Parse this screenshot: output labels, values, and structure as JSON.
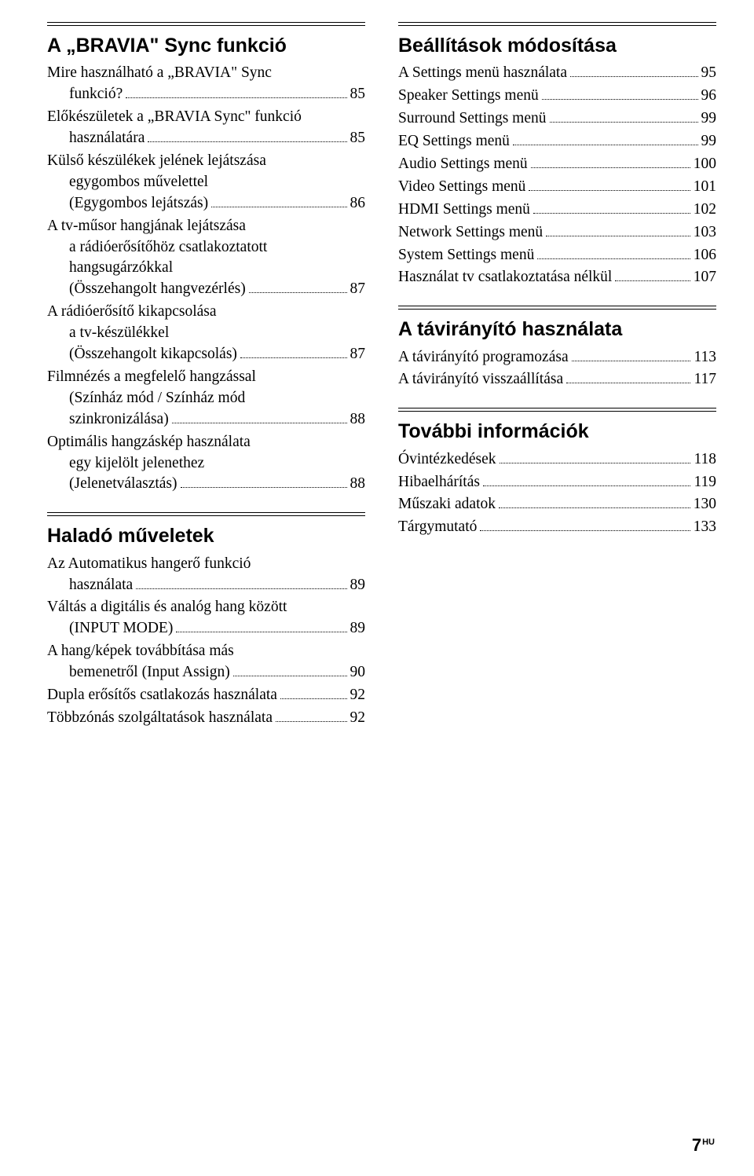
{
  "left": {
    "sections": [
      {
        "title": "A „BRAVIA\" Sync funkció",
        "entries": [
          {
            "lines": [
              "Mire használható a „BRAVIA\" Sync"
            ],
            "lastLabel": "funkció?",
            "indentLast": true,
            "page": "85"
          },
          {
            "lines": [
              "Előkészületek a „BRAVIA Sync\" funkció"
            ],
            "lastLabel": "használatára",
            "indentLast": true,
            "page": "85"
          },
          {
            "lines": [
              "Külső készülékek jelének lejátszása",
              "egygombos művelettel"
            ],
            "lastLabel": "(Egygombos lejátszás)",
            "indentLast": true,
            "page": "86"
          },
          {
            "lines": [
              "A tv-műsor hangjának lejátszása",
              "a rádióerősítőhöz csatlakoztatott",
              "hangsugárzókkal"
            ],
            "lastLabel": "(Összehangolt hangvezérlés)",
            "indentLast": true,
            "page": "87"
          },
          {
            "lines": [
              "A rádióerősítő kikapcsolása",
              "a tv-készülékkel"
            ],
            "lastLabel": "(Összehangolt kikapcsolás)",
            "indentLast": true,
            "page": "87"
          },
          {
            "lines": [
              "Filmnézés a megfelelő hangzással",
              "(Színház mód / Színház mód"
            ],
            "lastLabel": "szinkronizálása)",
            "indentLast": true,
            "page": "88"
          },
          {
            "lines": [
              "Optimális hangzáskép használata",
              "egy kijelölt jelenethez"
            ],
            "lastLabel": "(Jelenetválasztás)",
            "indentLast": true,
            "page": "88"
          }
        ]
      },
      {
        "title": "Haladó műveletek",
        "entries": [
          {
            "lines": [
              "Az Automatikus hangerő funkció"
            ],
            "lastLabel": "használata",
            "indentLast": true,
            "page": "89"
          },
          {
            "lines": [
              "Váltás a digitális és analóg hang között"
            ],
            "lastLabel": "(INPUT MODE)",
            "indentLast": true,
            "page": "89"
          },
          {
            "lines": [
              "A hang/képek továbbítása más"
            ],
            "lastLabel": "bemenetről (Input Assign)",
            "indentLast": true,
            "page": "90"
          },
          {
            "lines": [],
            "lastLabel": "Dupla erősítős csatlakozás használata",
            "indentLast": false,
            "page": "92"
          },
          {
            "lines": [],
            "lastLabel": "Többzónás szolgáltatások használata",
            "indentLast": false,
            "page": "92"
          }
        ]
      }
    ]
  },
  "right": {
    "sections": [
      {
        "title": "Beállítások módosítása",
        "entries": [
          {
            "lines": [],
            "lastLabel": "A Settings menü használata",
            "indentLast": false,
            "page": "95"
          },
          {
            "lines": [],
            "lastLabel": "Speaker Settings menü",
            "indentLast": false,
            "page": "96"
          },
          {
            "lines": [],
            "lastLabel": "Surround Settings menü",
            "indentLast": false,
            "page": "99"
          },
          {
            "lines": [],
            "lastLabel": "EQ Settings menü",
            "indentLast": false,
            "page": "99"
          },
          {
            "lines": [],
            "lastLabel": "Audio Settings menü",
            "indentLast": false,
            "page": "100"
          },
          {
            "lines": [],
            "lastLabel": "Video Settings menü",
            "indentLast": false,
            "page": "101"
          },
          {
            "lines": [],
            "lastLabel": "HDMI Settings menü",
            "indentLast": false,
            "page": "102"
          },
          {
            "lines": [],
            "lastLabel": "Network Settings menü",
            "indentLast": false,
            "page": "103"
          },
          {
            "lines": [],
            "lastLabel": "System Settings menü",
            "indentLast": false,
            "page": "106"
          },
          {
            "lines": [],
            "lastLabel": "Használat tv csatlakoztatása nélkül",
            "indentLast": false,
            "page": "107"
          }
        ]
      },
      {
        "title": "A távirányító használata",
        "entries": [
          {
            "lines": [],
            "lastLabel": "A távirányító programozása",
            "indentLast": false,
            "page": "113"
          },
          {
            "lines": [],
            "lastLabel": "A távirányító visszaállítása",
            "indentLast": false,
            "page": "117"
          }
        ]
      },
      {
        "title": "További információk",
        "entries": [
          {
            "lines": [],
            "lastLabel": "Óvintézkedések",
            "indentLast": false,
            "page": "118"
          },
          {
            "lines": [],
            "lastLabel": "Hibaelhárítás",
            "indentLast": false,
            "page": "119"
          },
          {
            "lines": [],
            "lastLabel": "Műszaki adatok",
            "indentLast": false,
            "page": "130"
          },
          {
            "lines": [],
            "lastLabel": "Tárgymutató",
            "indentLast": false,
            "page": "133"
          }
        ]
      }
    ]
  },
  "pageNumber": "7",
  "pageLang": "HU"
}
